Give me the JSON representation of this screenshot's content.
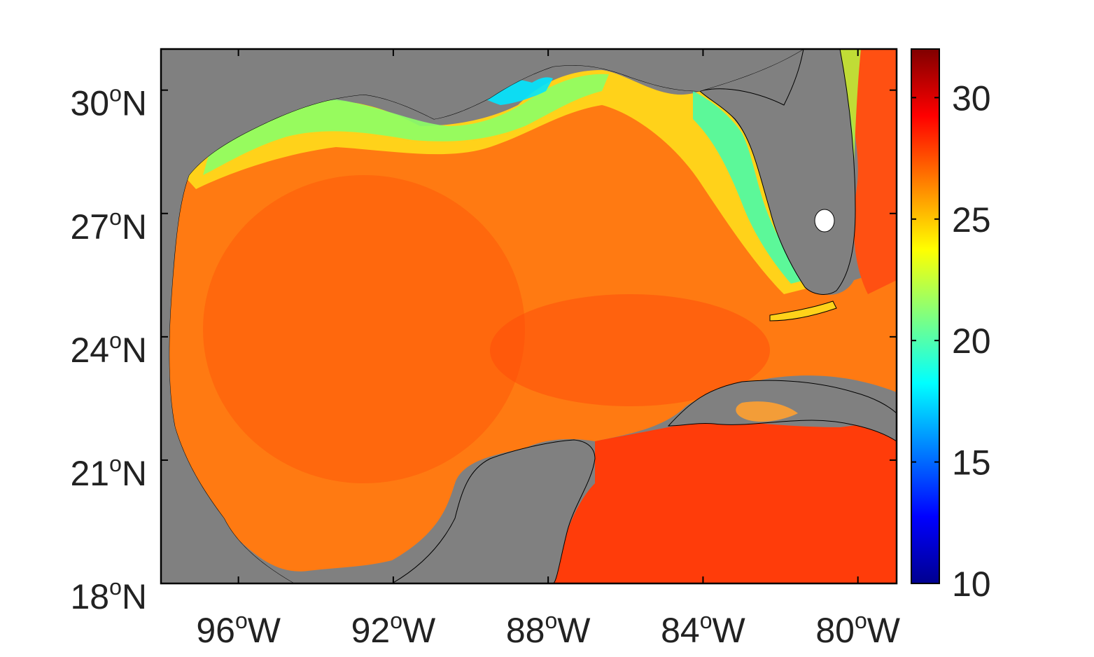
{
  "map": {
    "x_ticks": [
      {
        "lon": -96,
        "deg": "96",
        "sup": "o",
        "hemi": "W"
      },
      {
        "lon": -92,
        "deg": "92",
        "sup": "o",
        "hemi": "W"
      },
      {
        "lon": -88,
        "deg": "88",
        "sup": "o",
        "hemi": "W"
      },
      {
        "lon": -84,
        "deg": "84",
        "sup": "o",
        "hemi": "W"
      },
      {
        "lon": -80,
        "deg": "80",
        "sup": "o",
        "hemi": "W"
      }
    ],
    "y_ticks": [
      {
        "lat": 30,
        "deg": "30",
        "sup": "o",
        "hemi": "N"
      },
      {
        "lat": 27,
        "deg": "27",
        "sup": "o",
        "hemi": "N"
      },
      {
        "lat": 24,
        "deg": "24",
        "sup": "o",
        "hemi": "N"
      },
      {
        "lat": 21,
        "deg": "21",
        "sup": "o",
        "hemi": "N"
      },
      {
        "lat": 18,
        "deg": "18",
        "sup": "o",
        "hemi": "N"
      }
    ],
    "lon_range": [
      -98,
      -79
    ],
    "lat_range": [
      18,
      31
    ],
    "land_color": "#808080"
  },
  "colorbar": {
    "range": [
      10,
      32
    ],
    "ticks": [
      "10",
      "15",
      "20",
      "25",
      "30"
    ],
    "colormap": "jet"
  }
}
